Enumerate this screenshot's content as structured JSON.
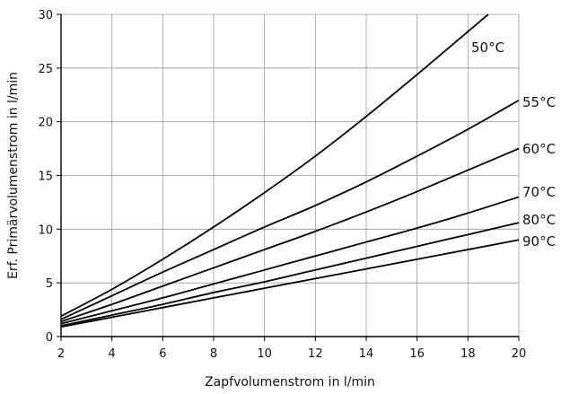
{
  "chart_data": {
    "type": "line",
    "title": "",
    "xlabel": "Zapfvolumenstrom in l/min",
    "ylabel": "Erf. Primärvolumenstrom in l/min",
    "xlim": [
      2,
      20
    ],
    "ylim": [
      0,
      30
    ],
    "x_ticks": [
      2,
      4,
      6,
      8,
      10,
      12,
      14,
      16,
      18,
      20
    ],
    "y_ticks": [
      0,
      5,
      10,
      15,
      20,
      25,
      30
    ],
    "grid": true,
    "legend": "none",
    "series": [
      {
        "name": "50°C",
        "x": [
          2,
          4,
          6,
          8,
          10,
          12,
          14,
          16,
          18,
          18.8
        ],
        "y": [
          1.9,
          4.4,
          7.2,
          10.2,
          13.4,
          16.8,
          20.5,
          24.4,
          28.4,
          30
        ]
      },
      {
        "name": "55°C",
        "x": [
          2,
          4,
          6,
          8,
          10,
          12,
          14,
          16,
          18,
          20
        ],
        "y": [
          1.6,
          3.8,
          6.0,
          8.1,
          10.2,
          12.2,
          14.4,
          16.8,
          19.3,
          22.0
        ]
      },
      {
        "name": "60°C",
        "x": [
          2,
          4,
          6,
          8,
          10,
          12,
          14,
          16,
          18,
          20
        ],
        "y": [
          1.4,
          3.0,
          4.7,
          6.4,
          8.1,
          9.8,
          11.6,
          13.5,
          15.5,
          17.5
        ]
      },
      {
        "name": "70°C",
        "x": [
          2,
          4,
          6,
          8,
          10,
          12,
          14,
          16,
          18,
          20
        ],
        "y": [
          1.2,
          2.4,
          3.6,
          4.9,
          6.2,
          7.5,
          8.8,
          10.1,
          11.5,
          13.0
        ]
      },
      {
        "name": "80°C",
        "x": [
          2,
          4,
          6,
          8,
          10,
          12,
          14,
          16,
          18,
          20
        ],
        "y": [
          1.0,
          2.0,
          3.0,
          4.1,
          5.1,
          6.2,
          7.3,
          8.4,
          9.5,
          10.6
        ]
      },
      {
        "name": "90°C",
        "x": [
          2,
          4,
          6,
          8,
          10,
          12,
          14,
          16,
          18,
          20
        ],
        "y": [
          0.9,
          1.8,
          2.7,
          3.6,
          4.5,
          5.4,
          6.3,
          7.2,
          8.1,
          9.0
        ]
      }
    ]
  }
}
